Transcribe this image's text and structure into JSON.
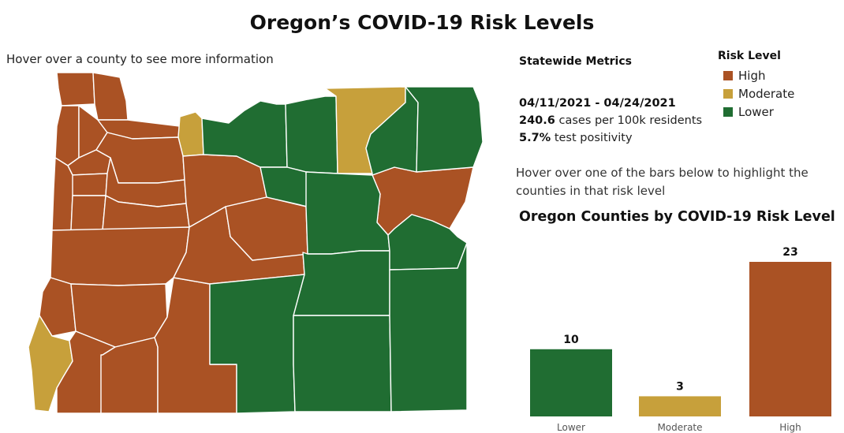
{
  "title": "Oregon’s COVID-19 Risk Levels",
  "hover_note": "Hover over a county to see more information",
  "colors": {
    "high": "#aa5224",
    "moderate": "#c7a03b",
    "lower": "#206d32"
  },
  "metrics": {
    "heading": "Statewide Metrics",
    "date_range": "04/11/2021 - 04/24/2021",
    "cases_value": "240.6",
    "cases_label": " cases per 100k residents",
    "positivity_value": "5.7%",
    "positivity_label": " test positivity"
  },
  "legend": {
    "title": "Risk Level",
    "items": [
      {
        "label": "High",
        "level": "high"
      },
      {
        "label": "Moderate",
        "level": "moderate"
      },
      {
        "label": "Lower",
        "level": "lower"
      }
    ]
  },
  "bars_note": "Hover over one of the bars below to highlight the counties in that risk level",
  "chart_data": {
    "type": "bar",
    "title": "Oregon Counties by COVID-19 Risk Level",
    "categories": [
      "Lower",
      "Moderate",
      "High"
    ],
    "values": [
      10,
      3,
      23
    ],
    "colors": [
      "#206d32",
      "#c7a03b",
      "#aa5224"
    ],
    "ylim": [
      0,
      25
    ],
    "grid": false
  },
  "counties": [
    {
      "id": "clatsop",
      "level": "high"
    },
    {
      "id": "columbia",
      "level": "high"
    },
    {
      "id": "tillamook",
      "level": "high"
    },
    {
      "id": "washington",
      "level": "high"
    },
    {
      "id": "multnomah",
      "level": "high"
    },
    {
      "id": "hood-river",
      "level": "moderate"
    },
    {
      "id": "yamhill",
      "level": "high"
    },
    {
      "id": "clackamas",
      "level": "high"
    },
    {
      "id": "polk",
      "level": "high"
    },
    {
      "id": "marion",
      "level": "high"
    },
    {
      "id": "lincoln",
      "level": "high"
    },
    {
      "id": "benton",
      "level": "high"
    },
    {
      "id": "linn",
      "level": "high"
    },
    {
      "id": "lane",
      "level": "high"
    },
    {
      "id": "coos",
      "level": "high"
    },
    {
      "id": "douglas",
      "level": "high"
    },
    {
      "id": "curry",
      "level": "moderate"
    },
    {
      "id": "josephine",
      "level": "high"
    },
    {
      "id": "jackson",
      "level": "high"
    },
    {
      "id": "klamath",
      "level": "high"
    },
    {
      "id": "jefferson",
      "level": "high"
    },
    {
      "id": "deschutes",
      "level": "high"
    },
    {
      "id": "crook",
      "level": "high"
    },
    {
      "id": "union",
      "level": "high"
    },
    {
      "id": "wasco",
      "level": "lower"
    },
    {
      "id": "sherman",
      "level": "lower"
    },
    {
      "id": "gilliam",
      "level": "lower"
    },
    {
      "id": "morrow",
      "level": "moderate"
    },
    {
      "id": "umatilla",
      "level": "lower"
    },
    {
      "id": "wallowa",
      "level": "lower"
    },
    {
      "id": "wheeler",
      "level": "lower"
    },
    {
      "id": "grant",
      "level": "lower"
    },
    {
      "id": "baker",
      "level": "lower"
    },
    {
      "id": "lake",
      "level": "lower"
    },
    {
      "id": "harney",
      "level": "lower"
    },
    {
      "id": "malheur",
      "level": "lower"
    }
  ]
}
